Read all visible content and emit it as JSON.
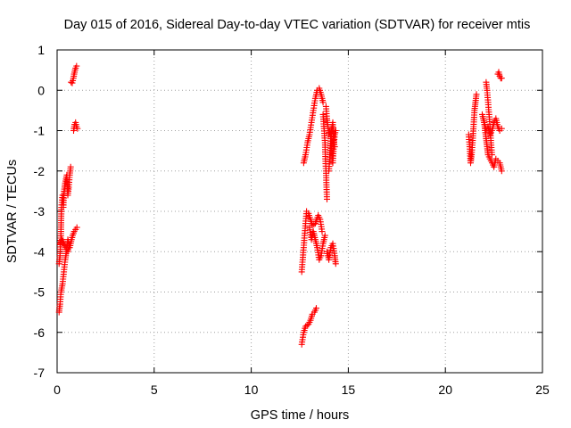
{
  "chart_data": {
    "type": "scatter",
    "title": "Day 015 of 2016, Sidereal Day-to-day VTEC variation (SDTVAR) for receiver mtis",
    "xlabel": "GPS time / hours",
    "ylabel": "SDTVAR / TECUs",
    "xlim": [
      0,
      25
    ],
    "ylim": [
      -7,
      1
    ],
    "xticks": [
      "0",
      "5",
      "10",
      "15",
      "20",
      "25"
    ],
    "yticks": [
      "-7",
      "-6",
      "-5",
      "-4",
      "-3",
      "-2",
      "-1",
      "0",
      "1"
    ],
    "grid": true,
    "marker": "plus",
    "colors": {
      "series": "#ff0000",
      "grid": "#a0a0a0",
      "axis": "#000000"
    },
    "segments": [
      [
        [
          0.1,
          -4.3
        ],
        [
          0.15,
          -4.1
        ],
        [
          0.2,
          -3.5
        ],
        [
          0.22,
          -2.9
        ],
        [
          0.28,
          -2.6
        ],
        [
          0.32,
          -2.9
        ],
        [
          0.36,
          -2.5
        ],
        [
          0.42,
          -2.3
        ],
        [
          0.5,
          -2.1
        ],
        [
          0.55,
          -2.6
        ],
        [
          0.6,
          -2.4
        ],
        [
          0.65,
          -2.1
        ],
        [
          0.7,
          -1.9
        ]
      ],
      [
        [
          0.1,
          -5.5
        ],
        [
          0.15,
          -5.3
        ],
        [
          0.2,
          -5.0
        ],
        [
          0.28,
          -4.8
        ],
        [
          0.35,
          -4.5
        ],
        [
          0.42,
          -4.2
        ],
        [
          0.48,
          -4.0
        ],
        [
          0.55,
          -3.7
        ],
        [
          0.65,
          -3.9
        ],
        [
          0.72,
          -3.75
        ],
        [
          0.8,
          -3.6
        ],
        [
          0.88,
          -3.5
        ],
        [
          0.95,
          -3.45
        ],
        [
          1.02,
          -3.4
        ]
      ],
      [
        [
          0.15,
          -3.8
        ],
        [
          0.25,
          -3.7
        ],
        [
          0.35,
          -3.8
        ],
        [
          0.45,
          -3.9
        ],
        [
          0.55,
          -4.0
        ],
        [
          0.62,
          -3.85
        ]
      ],
      [
        [
          0.72,
          0.2
        ],
        [
          0.78,
          0.18
        ],
        [
          0.84,
          0.3
        ],
        [
          0.9,
          0.45
        ],
        [
          0.95,
          0.55
        ],
        [
          1.0,
          0.6
        ]
      ],
      [
        [
          0.85,
          -1.0
        ],
        [
          0.9,
          -0.85
        ],
        [
          0.95,
          -0.8
        ],
        [
          1.0,
          -0.9
        ],
        [
          1.05,
          -0.95
        ]
      ],
      [
        [
          12.6,
          -6.3
        ],
        [
          12.7,
          -6.0
        ],
        [
          12.8,
          -5.85
        ],
        [
          12.95,
          -5.8
        ],
        [
          13.05,
          -5.7
        ],
        [
          13.15,
          -5.55
        ],
        [
          13.25,
          -5.5
        ],
        [
          13.35,
          -5.4
        ]
      ],
      [
        [
          12.6,
          -4.5
        ],
        [
          12.65,
          -4.2
        ],
        [
          12.7,
          -3.9
        ],
        [
          12.75,
          -3.6
        ],
        [
          12.8,
          -3.3
        ],
        [
          12.85,
          -3.0
        ],
        [
          12.95,
          -3.05
        ],
        [
          13.05,
          -3.2
        ],
        [
          13.15,
          -3.35
        ],
        [
          13.3,
          -3.3
        ],
        [
          13.45,
          -3.1
        ],
        [
          13.55,
          -3.2
        ],
        [
          13.65,
          -3.5
        ]
      ],
      [
        [
          12.7,
          -1.8
        ],
        [
          12.8,
          -1.6
        ],
        [
          12.9,
          -1.3
        ],
        [
          13.0,
          -1.1
        ],
        [
          13.1,
          -0.8
        ],
        [
          13.2,
          -0.5
        ],
        [
          13.3,
          -0.2
        ],
        [
          13.4,
          0.0
        ],
        [
          13.5,
          0.05
        ],
        [
          13.6,
          -0.1
        ],
        [
          13.7,
          -0.3
        ]
      ],
      [
        [
          13.0,
          -3.4
        ],
        [
          13.1,
          -3.7
        ],
        [
          13.2,
          -3.5
        ],
        [
          13.3,
          -3.7
        ],
        [
          13.4,
          -3.9
        ],
        [
          13.5,
          -4.2
        ],
        [
          13.6,
          -4.1
        ],
        [
          13.7,
          -3.8
        ],
        [
          13.8,
          -3.6
        ]
      ],
      [
        [
          13.7,
          -0.6
        ],
        [
          13.75,
          -0.95
        ],
        [
          13.8,
          -1.3
        ],
        [
          13.82,
          -1.7
        ],
        [
          13.85,
          -2.0
        ],
        [
          13.88,
          -2.4
        ],
        [
          13.9,
          -2.7
        ]
      ],
      [
        [
          13.85,
          -0.4
        ],
        [
          13.9,
          -0.7
        ],
        [
          13.95,
          -0.9
        ],
        [
          14.0,
          -1.1
        ],
        [
          14.05,
          -1.0
        ],
        [
          14.1,
          -1.2
        ],
        [
          14.15,
          -0.95
        ],
        [
          14.2,
          -0.8
        ],
        [
          14.25,
          -1.3
        ],
        [
          14.3,
          -1.4
        ]
      ],
      [
        [
          13.9,
          -4.0
        ],
        [
          14.0,
          -4.2
        ],
        [
          14.1,
          -3.9
        ],
        [
          14.2,
          -3.8
        ],
        [
          14.3,
          -4.1
        ],
        [
          14.35,
          -4.3
        ]
      ],
      [
        [
          14.0,
          -2.0
        ],
        [
          14.05,
          -1.6
        ],
        [
          14.1,
          -1.2
        ],
        [
          14.15,
          -1.5
        ],
        [
          14.2,
          -1.8
        ],
        [
          14.25,
          -1.4
        ],
        [
          14.3,
          -1.1
        ],
        [
          14.35,
          -1.0
        ]
      ],
      [
        [
          21.2,
          -1.1
        ],
        [
          21.25,
          -1.4
        ],
        [
          21.3,
          -1.8
        ],
        [
          21.35,
          -1.6
        ],
        [
          21.4,
          -1.3
        ],
        [
          21.45,
          -0.9
        ],
        [
          21.5,
          -0.5
        ],
        [
          21.55,
          -0.3
        ],
        [
          21.6,
          -0.1
        ]
      ],
      [
        [
          21.9,
          -0.6
        ],
        [
          22.0,
          -0.8
        ],
        [
          22.05,
          -1.0
        ],
        [
          22.1,
          -1.2
        ],
        [
          22.15,
          -1.4
        ],
        [
          22.2,
          -1.6
        ],
        [
          22.3,
          -1.7
        ],
        [
          22.4,
          -1.8
        ],
        [
          22.5,
          -1.9
        ],
        [
          22.6,
          -1.7
        ],
        [
          22.7,
          -1.75
        ],
        [
          22.8,
          -1.8
        ],
        [
          22.9,
          -2.0
        ]
      ],
      [
        [
          22.0,
          -0.8
        ],
        [
          22.1,
          -1.0
        ],
        [
          22.2,
          -0.9
        ],
        [
          22.3,
          -1.1
        ],
        [
          22.4,
          -1.0
        ],
        [
          22.5,
          -0.8
        ],
        [
          22.6,
          -0.7
        ],
        [
          22.7,
          -0.9
        ],
        [
          22.8,
          -1.0
        ],
        [
          22.9,
          -0.95
        ]
      ],
      [
        [
          22.1,
          0.2
        ],
        [
          22.15,
          0.0
        ],
        [
          22.2,
          -0.3
        ],
        [
          22.25,
          -0.6
        ],
        [
          22.3,
          -0.9
        ],
        [
          22.35,
          -1.3
        ],
        [
          22.4,
          -1.6
        ]
      ],
      [
        [
          22.7,
          0.4
        ],
        [
          22.75,
          0.45
        ],
        [
          22.8,
          0.35
        ],
        [
          22.85,
          0.3
        ],
        [
          22.9,
          0.3
        ]
      ]
    ]
  }
}
